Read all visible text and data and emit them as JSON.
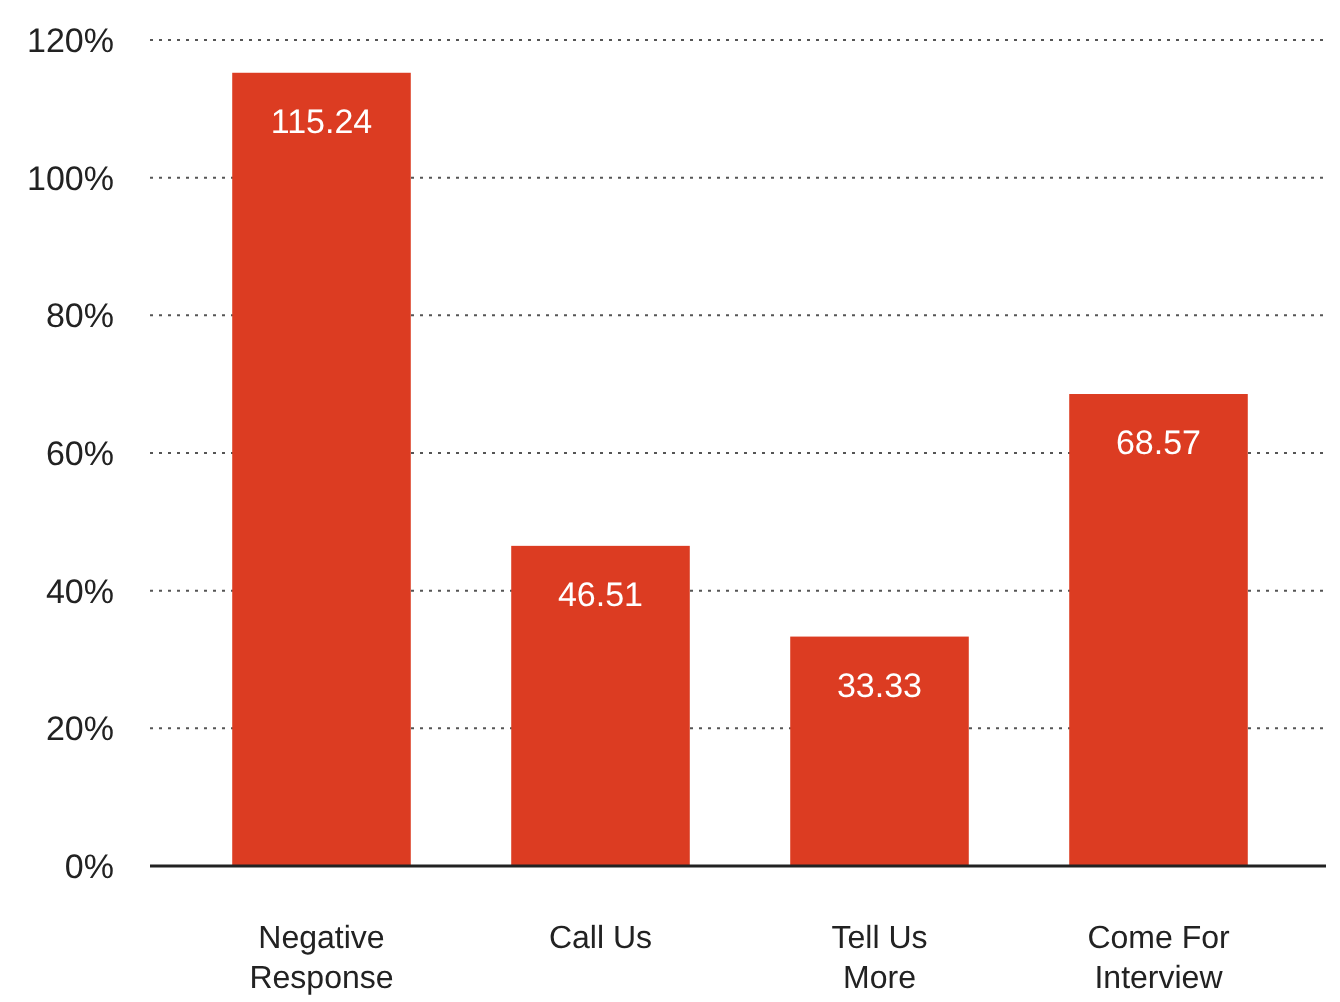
{
  "chart_data": {
    "type": "bar",
    "categories": [
      "Negative Response",
      "Call Us",
      "Tell Us More",
      "Come For Interview"
    ],
    "values": [
      115.24,
      46.51,
      33.33,
      68.57
    ],
    "color": "#dc3c22",
    "data_labels": true,
    "grid": "y",
    "ylim": [
      0,
      120
    ],
    "yticks": [
      {
        "value": 0,
        "label": "0%"
      },
      {
        "value": 20,
        "label": "20%"
      },
      {
        "value": 40,
        "label": "40%"
      },
      {
        "value": 60,
        "label": "60%"
      },
      {
        "value": 80,
        "label": "80%"
      },
      {
        "value": 100,
        "label": "100%"
      },
      {
        "value": 120,
        "label": "120%"
      }
    ]
  }
}
